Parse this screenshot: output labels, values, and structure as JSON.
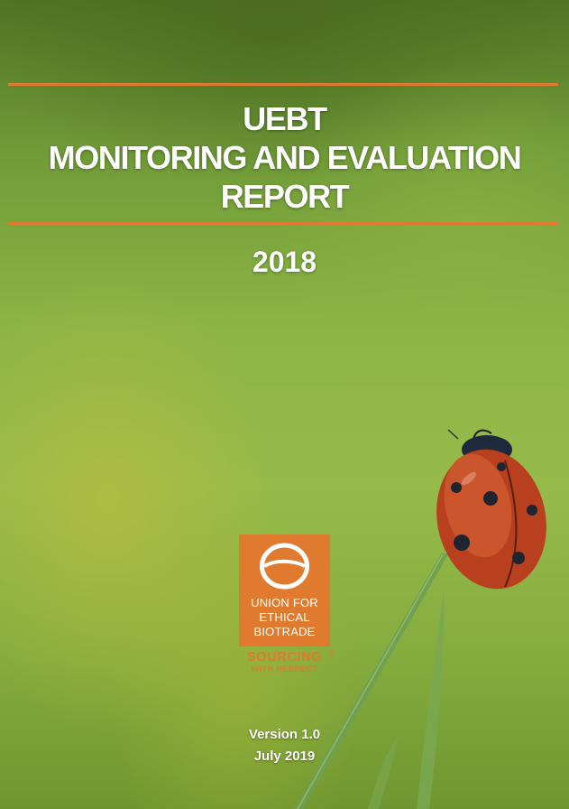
{
  "cover": {
    "title_line1": "UEBT",
    "title_line2": "MONITORING AND EVALUATION",
    "title_line3": "REPORT",
    "year": "2018",
    "version": "Version 1.0",
    "date": "July 2019"
  },
  "logo": {
    "line1": "UNION FOR",
    "line2": "ETHICAL",
    "line3": "BIOTRADE",
    "slogan_line1": "SOURCING",
    "registered_mark": "®",
    "slogan_line2": "WITH RESPECT"
  },
  "colors": {
    "accent": "#e07a2e",
    "background_green": "#8bb446",
    "text": "#ffffff"
  }
}
